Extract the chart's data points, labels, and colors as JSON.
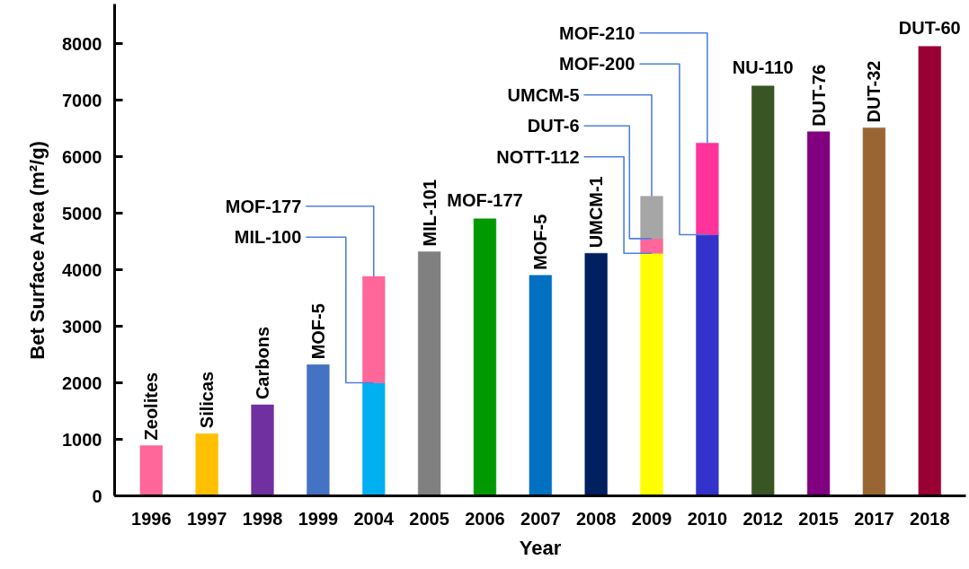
{
  "chart_data": {
    "type": "bar",
    "stacked": true,
    "categories": [
      "1996",
      "1997",
      "1998",
      "1999",
      "2004",
      "2005",
      "2006",
      "2007",
      "2008",
      "2009",
      "2010",
      "2012",
      "2015",
      "2017",
      "2018"
    ],
    "series": [
      {
        "values": [
          890,
          1100,
          1610,
          2320,
          2000,
          4320,
          4900,
          3900,
          4290,
          4290,
          4620,
          7250,
          6440,
          6510,
          7950
        ],
        "colors": [
          "#ff6699",
          "#ffc000",
          "#7030a0",
          "#4472c4",
          "#00b0f0",
          "#808080",
          "#009900",
          "#0070c0",
          "#002060",
          "#ffff00",
          "#3333cc",
          "#375623",
          "#800080",
          "#996633",
          "#990033"
        ]
      },
      {
        "values": [
          null,
          null,
          null,
          null,
          1880,
          null,
          null,
          null,
          null,
          260,
          1620,
          null,
          null,
          null,
          null
        ],
        "colors": [
          null,
          null,
          null,
          null,
          "#ff6699",
          null,
          null,
          null,
          null,
          "#ff6699",
          "#ff3399",
          null,
          null,
          null,
          null
        ]
      },
      {
        "values": [
          null,
          null,
          null,
          null,
          null,
          null,
          null,
          null,
          null,
          750,
          null,
          null,
          null,
          null,
          null
        ],
        "colors": [
          null,
          null,
          null,
          null,
          null,
          null,
          null,
          null,
          null,
          "#a6a6a6",
          null,
          null,
          null,
          null,
          null
        ]
      }
    ],
    "xlabel": "Year",
    "ylabel": "Bet Surface Area (m²/g)",
    "ylim": [
      0,
      8700
    ],
    "yticks": [
      0,
      1000,
      2000,
      3000,
      4000,
      5000,
      6000,
      7000,
      8000
    ],
    "annotations": [
      {
        "text": "Zeolites",
        "x": "1996",
        "y": 890
      },
      {
        "text": "Silicas",
        "x": "1997",
        "y": 1100
      },
      {
        "text": "Carbons",
        "x": "1998",
        "y": 1610
      },
      {
        "text": "MOF-5",
        "x": "1999",
        "y": 2320
      },
      {
        "text": "MIL-100",
        "x": "2004",
        "y": 2000
      },
      {
        "text": "MOF-177",
        "x": "2004",
        "y": 3880
      },
      {
        "text": "MIL-101",
        "x": "2005",
        "y": 4320
      },
      {
        "text": "MOF-177",
        "x": "2006",
        "y": 4900
      },
      {
        "text": "MOF-5",
        "x": "2007",
        "y": 3900
      },
      {
        "text": "UMCM-1",
        "x": "2008",
        "y": 4290
      },
      {
        "text": "NOTT-112",
        "x": "2009",
        "y": 4290
      },
      {
        "text": "DUT-6",
        "x": "2009",
        "y": 4550
      },
      {
        "text": "UMCM-5",
        "x": "2009",
        "y": 5300
      },
      {
        "text": "MOF-200",
        "x": "2010",
        "y": 4620
      },
      {
        "text": "MOF-210",
        "x": "2010",
        "y": 6240
      },
      {
        "text": "NU-110",
        "x": "2012",
        "y": 7250
      },
      {
        "text": "DUT-76",
        "x": "2015",
        "y": 6440
      },
      {
        "text": "DUT-32",
        "x": "2017",
        "y": 6510
      },
      {
        "text": "DUT-60",
        "x": "2018",
        "y": 7950
      }
    ]
  }
}
